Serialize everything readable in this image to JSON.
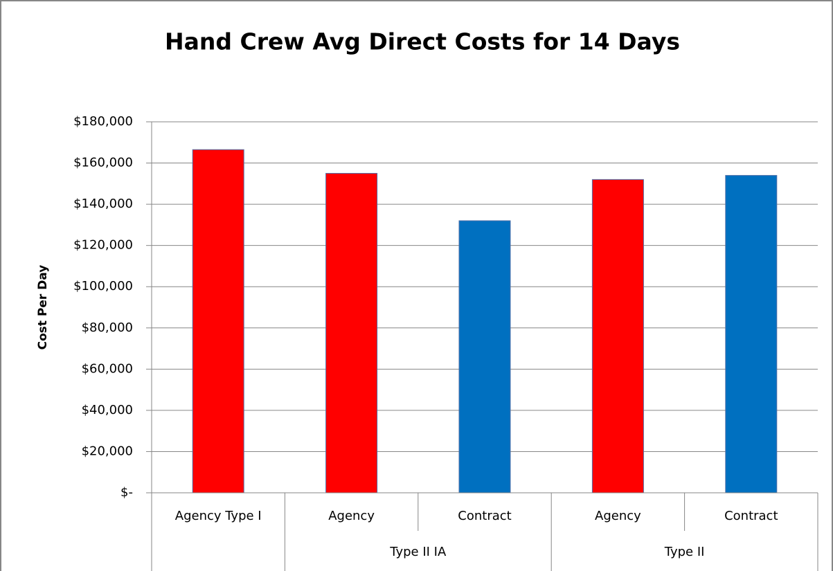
{
  "chart_data": {
    "type": "bar",
    "title": "Hand Crew Avg Direct Costs for 14 Days",
    "y_label": "Cost Per Day",
    "categories": [
      "Agency Type I",
      "Agency",
      "Contract",
      "Agency",
      "Contract"
    ],
    "groups": [
      null,
      "Type II IA",
      "Type II IA",
      "Type II",
      "Type II"
    ],
    "values": [
      166500,
      155000,
      132000,
      152000,
      154000
    ],
    "colors": [
      "#ff0000",
      "#ff0000",
      "#0070c0",
      "#ff0000",
      "#0070c0"
    ],
    "ylim": [
      0,
      180000
    ],
    "yticks": [
      {
        "value": 0,
        "label": "$-"
      },
      {
        "value": 20000,
        "label": "$20,000"
      },
      {
        "value": 40000,
        "label": "$40,000"
      },
      {
        "value": 60000,
        "label": "$60,000"
      },
      {
        "value": 80000,
        "label": "$80,000"
      },
      {
        "value": 100000,
        "label": "$100,000"
      },
      {
        "value": 120000,
        "label": "$120,000"
      },
      {
        "value": 140000,
        "label": "$140,000"
      },
      {
        "value": 160000,
        "label": "$160,000"
      },
      {
        "value": 180000,
        "label": "$180,000"
      }
    ],
    "grid": true
  }
}
